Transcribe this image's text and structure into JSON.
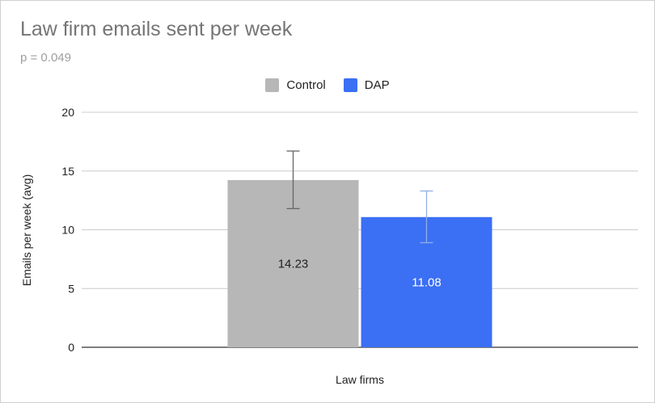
{
  "chart_data": {
    "type": "bar",
    "title": "Law firm emails sent per week",
    "subtitle": "p = 0.049",
    "xlabel": "Law firms",
    "ylabel": "Emails per week (avg)",
    "ylim": [
      0,
      20
    ],
    "yticks": [
      0,
      5,
      10,
      15,
      20
    ],
    "grid": true,
    "legend_position": "top",
    "series": [
      {
        "name": "Control",
        "values": [
          14.23
        ],
        "error_low": [
          11.8
        ],
        "error_high": [
          16.7
        ],
        "color": "#b7b7b7",
        "errorbar_color": "#666666",
        "label_color": "#222222",
        "value_label": "14.23"
      },
      {
        "name": "DAP",
        "values": [
          11.08
        ],
        "error_low": [
          8.9
        ],
        "error_high": [
          13.3
        ],
        "color": "#3b6ff4",
        "errorbar_color": "#8fb0e8",
        "label_color": "#ffffff",
        "value_label": "11.08"
      }
    ]
  }
}
